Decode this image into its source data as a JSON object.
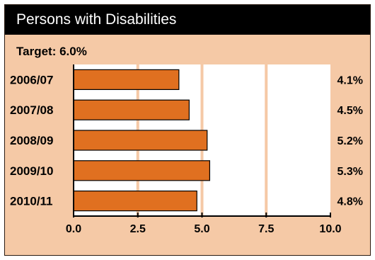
{
  "chart_data": {
    "type": "bar",
    "orientation": "horizontal",
    "title": "Persons with Disabilities",
    "subtitle": "Target: 6.0%",
    "categories": [
      "2006/07",
      "2007/08",
      "2008/09",
      "2009/10",
      "2010/11"
    ],
    "values": [
      4.1,
      4.5,
      5.2,
      5.3,
      4.8
    ],
    "value_labels": [
      "4.1%",
      "4.5%",
      "5.2%",
      "5.3%",
      "4.8%"
    ],
    "xlim": [
      0,
      10
    ],
    "xticks": [
      "0.0",
      "2.5",
      "5.0",
      "7.5",
      "10.0"
    ],
    "grid": true,
    "colors": {
      "bar": "#e07020",
      "background": "#f5c9a6",
      "plot_background": "#ffffff",
      "gridline": "#f5c9a6",
      "title_bar": "#000000",
      "title_text": "#ffffff"
    }
  }
}
